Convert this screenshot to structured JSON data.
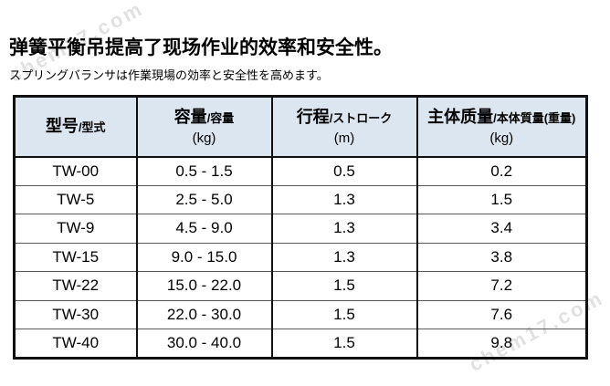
{
  "header": {
    "title_zh": "弹簧平衡吊提高了现场作业的效率和安全性。",
    "subtitle_ja": "スプリングバランサは作業現場の効率と安全性を高めます。"
  },
  "watermark": {
    "text": "chem17.com",
    "color": "#c9c9c9"
  },
  "table": {
    "header_bg": "#dce6f1",
    "columns": [
      {
        "main": "型号",
        "sub": "/型式",
        "unit": ""
      },
      {
        "main": "容量",
        "sub": "/容量",
        "unit": "(kg)"
      },
      {
        "main": "行程",
        "sub": "/ストローク",
        "unit": "(m)"
      },
      {
        "main": "主体质量",
        "sub": "/本体質量(重量)",
        "unit": "(kg)"
      }
    ],
    "rows": [
      {
        "model": "TW-00",
        "capacity": "0.5 - 1.5",
        "stroke": "0.5",
        "weight": "0.2"
      },
      {
        "model": "TW-5",
        "capacity": "2.5 - 5.0",
        "stroke": "1.3",
        "weight": "1.5"
      },
      {
        "model": "TW-9",
        "capacity": "4.5 - 9.0",
        "stroke": "1.3",
        "weight": "3.4"
      },
      {
        "model": "TW-15",
        "capacity": "9.0 - 15.0",
        "stroke": "1.3",
        "weight": "3.8"
      },
      {
        "model": "TW-22",
        "capacity": "15.0 - 22.0",
        "stroke": "1.5",
        "weight": "7.2"
      },
      {
        "model": "TW-30",
        "capacity": "22.0 - 30.0",
        "stroke": "1.5",
        "weight": "7.6"
      },
      {
        "model": "TW-40",
        "capacity": "30.0 - 40.0",
        "stroke": "1.5",
        "weight": "9.8"
      }
    ]
  }
}
